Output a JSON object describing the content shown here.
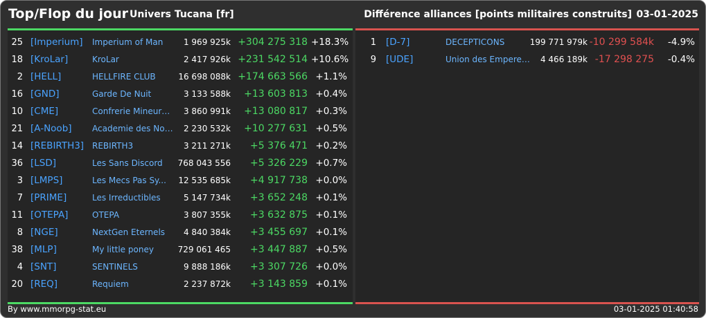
{
  "header": {
    "title": "Top/Flop du jour",
    "universe": "Univers Tucana [fr]",
    "diff_title": "Différence alliances [points militaires construits]",
    "date": "03-01-2025"
  },
  "colors": {
    "gain": "#4cd964",
    "loss": "#e05050",
    "tag": "#4aa3ff"
  },
  "top": [
    {
      "rank": "25",
      "tag": "[Imperium]",
      "name": "Imperium of Man",
      "points": "1 969 925k",
      "diff": "+304 275 318",
      "pct": "+18.3%"
    },
    {
      "rank": "18",
      "tag": "[KroLar]",
      "name": "KroLar",
      "points": "2 417 926k",
      "diff": "+231 542 514",
      "pct": "+10.6%"
    },
    {
      "rank": "2",
      "tag": "[HELL]",
      "name": "HELLFIRE CLUB",
      "points": "16 698 088k",
      "diff": "+174 663 566",
      "pct": "+1.1%"
    },
    {
      "rank": "16",
      "tag": "[GND]",
      "name": "Garde De Nuit",
      "points": "3 133 588k",
      "diff": "+13 603 813",
      "pct": "+0.4%"
    },
    {
      "rank": "10",
      "tag": "[CME]",
      "name": "Confrerie Mineurs ...",
      "points": "3 860 991k",
      "diff": "+13 080 817",
      "pct": "+0.3%"
    },
    {
      "rank": "21",
      "tag": "[A-Noob]",
      "name": "Academie des Noob...",
      "points": "2 230 532k",
      "diff": "+10 277 631",
      "pct": "+0.5%"
    },
    {
      "rank": "14",
      "tag": "[REBIRTH3]",
      "name": "REBIRTH3",
      "points": "3 211 271k",
      "diff": "+5 376 471",
      "pct": "+0.2%"
    },
    {
      "rank": "36",
      "tag": "[LSD]",
      "name": "Les Sans Discord",
      "points": "768 043 556",
      "diff": "+5 326 229",
      "pct": "+0.7%"
    },
    {
      "rank": "3",
      "tag": "[LMPS]",
      "name": "Les Mecs Pas Sy...",
      "points": "12 535 685k",
      "diff": "+4 917 738",
      "pct": "+0.0%"
    },
    {
      "rank": "7",
      "tag": "[PRIME]",
      "name": "Les Irreductibles",
      "points": "5 147 734k",
      "diff": "+3 652 248",
      "pct": "+0.1%"
    },
    {
      "rank": "11",
      "tag": "[OTEPA]",
      "name": "OTEPA",
      "points": "3 807 355k",
      "diff": "+3 632 875",
      "pct": "+0.1%"
    },
    {
      "rank": "8",
      "tag": "[NGE]",
      "name": "NextGen Eternels",
      "points": "4 840 384k",
      "diff": "+3 455 697",
      "pct": "+0.1%"
    },
    {
      "rank": "38",
      "tag": "[MLP]",
      "name": "My little poney",
      "points": "729 061 465",
      "diff": "+3 447 887",
      "pct": "+0.5%"
    },
    {
      "rank": "4",
      "tag": "[SNT]",
      "name": "SENTINELS",
      "points": "9 888 186k",
      "diff": "+3 307 726",
      "pct": "+0.0%"
    },
    {
      "rank": "20",
      "tag": "[REQ]",
      "name": "Requiem",
      "points": "2 237 872k",
      "diff": "+3 143 859",
      "pct": "+0.1%"
    }
  ],
  "flop": [
    {
      "rank": "1",
      "tag": "[D-7]",
      "name": "DECEPTICONS",
      "points": "199 771 979k",
      "diff": "-10 299 584k",
      "pct": "-4.9%"
    },
    {
      "rank": "9",
      "tag": "[UDE]",
      "name": "Union des Empereur...",
      "points": "4 466 189k",
      "diff": "-17 298 275",
      "pct": "-0.4%"
    }
  ],
  "footer": {
    "source": "By www.mmorpg-stat.eu",
    "timestamp": "03-01-2025 01:40:58"
  }
}
